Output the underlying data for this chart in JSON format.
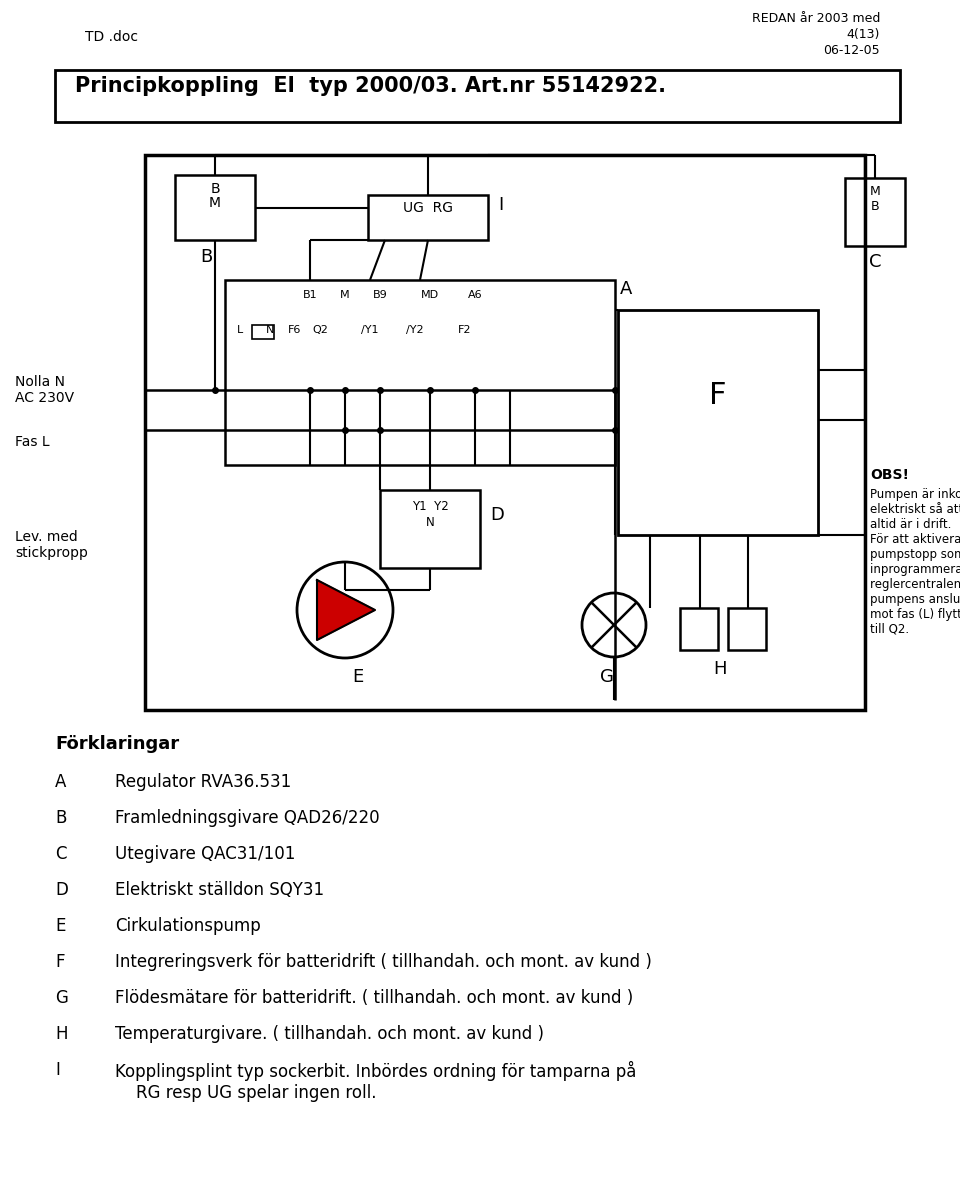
{
  "header_left": "TD .doc",
  "header_right_line1": "REDAN år 2003 med",
  "header_right_line2": "4(13)",
  "header_right_line3": "06-12-05",
  "title_box_text": "Principkoppling  El  typ 2000/03. Art.nr 55142922.",
  "obs_text_line1": "OBS!",
  "obs_text_body": "Pumpen är inkopplad\nelektriskt så att den\naltid är i drift.\nFör att aktivera de\npumpstopp som finns\ninprogrammerade i\nreglercentralen skall\npumpens anslutning\nmot fas (L) flyttas\ntill Q2.",
  "forklaringar_title": "Förklaringar",
  "forklaringar_items": [
    [
      "A",
      "Regulator RVA36.531"
    ],
    [
      "B",
      "Framledningsgivare QAD26/220"
    ],
    [
      "C",
      "Utegivare QAC31/101"
    ],
    [
      "D",
      "Elektriskt ställdon SQY31"
    ],
    [
      "E",
      "Cirkulationspump"
    ],
    [
      "F",
      "Integreringsverk för batteridrift ( tillhandah. och mont. av kund )"
    ],
    [
      "G",
      "Flödesmätare för batteridrift. ( tillhandah. och mont. av kund )"
    ],
    [
      "H",
      "Temperaturgivare. ( tillhandah. och mont. av kund )"
    ],
    [
      "I",
      "Kopplingsplint typ sockerbit. Inbördes ordning för tamparna på\n    RG resp UG spelar ingen roll."
    ]
  ],
  "bg_color": "#ffffff",
  "line_color": "#000000",
  "red_color": "#cc0000"
}
